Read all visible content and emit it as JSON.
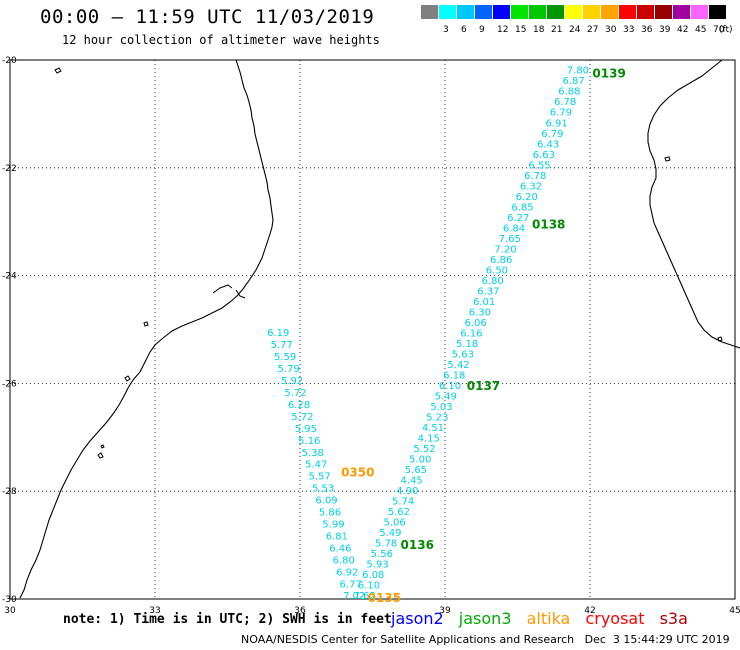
{
  "header": {
    "title": "00:00 – 11:59 UTC 11/03/2019",
    "subtitle": "12 hour collection of altimeter wave heights"
  },
  "legend": {
    "unit": "(ft)",
    "swatches": [
      {
        "label": "",
        "color": "#808080"
      },
      {
        "label": "3",
        "color": "#00ffff"
      },
      {
        "label": "6",
        "color": "#00c8ff"
      },
      {
        "label": "9",
        "color": "#0064ff"
      },
      {
        "label": "12",
        "color": "#0000ff"
      },
      {
        "label": "15",
        "color": "#00e600"
      },
      {
        "label": "18",
        "color": "#00c800"
      },
      {
        "label": "21",
        "color": "#009600"
      },
      {
        "label": "24",
        "color": "#ffff00"
      },
      {
        "label": "27",
        "color": "#ffd200"
      },
      {
        "label": "30",
        "color": "#ffa500"
      },
      {
        "label": "33",
        "color": "#ff0000"
      },
      {
        "label": "36",
        "color": "#c80000"
      },
      {
        "label": "39",
        "color": "#960000"
      },
      {
        "label": "42",
        "color": "#a000a0"
      },
      {
        "label": "45",
        "color": "#ff64ff"
      },
      {
        "label": "70",
        "color": "#000000"
      }
    ]
  },
  "map": {
    "lon_min": 30,
    "lon_max": 45,
    "lat_min": -30,
    "lat_max": -20,
    "x_ticks": [
      "30",
      "33",
      "36",
      "39",
      "42",
      "45"
    ],
    "y_ticks": [
      "-20",
      "-22",
      "-24",
      "-26",
      "-28",
      "-30"
    ],
    "grid": "dotted"
  },
  "colors": {
    "swh_values": "#00d0e8",
    "jason3_time": "#008800",
    "altika_time": "#ff9900",
    "jason2": "#0000ff",
    "jason3": "#00aa00",
    "altika": "#ff9900",
    "cryosat": "#ff0000",
    "s3a": "#aa0000",
    "coast": "#000000"
  },
  "tracks": [
    {
      "satellite": "jason3",
      "values": [
        "7.80",
        "6.87",
        "6.88",
        "6.78",
        "6.79",
        "6.91",
        "6.79",
        "6.43",
        "6.63",
        "6.55",
        "6.78",
        "6.32",
        "6.20",
        "6.85",
        "6.27",
        "6.84",
        "7.65",
        "7.20",
        "6.86",
        "6.50",
        "6.80",
        "6.37",
        "6.01",
        "6.30",
        "6.06",
        "6.16",
        "5.18",
        "5.63",
        "5.42",
        "6.18",
        "6.10",
        "5.49",
        "5.03",
        "5.23",
        "4.51",
        "4.15",
        "5.52",
        "5.00",
        "5.65",
        "4.45",
        "4.90",
        "5.74",
        "5.62",
        "5.06",
        "5.49",
        "5.78",
        "5.56",
        "5.93",
        "6.08",
        "6.10",
        "7.62"
      ],
      "times": [
        {
          "label": "0139",
          "lon": 42.05,
          "lat": -20.25
        },
        {
          "label": "0138",
          "lon": 40.8,
          "lat": -23.05
        },
        {
          "label": "0137",
          "lon": 39.45,
          "lat": -26.05
        },
        {
          "label": "0136",
          "lon": 38.08,
          "lat": -29.0
        }
      ]
    },
    {
      "satellite": "altika",
      "values": [
        "6.19",
        "5.77",
        "5.59",
        "5.79",
        "5.92",
        "5.72",
        "6.28",
        "5.72",
        "5.95",
        "5.16",
        "5.38",
        "5.47",
        "5.57",
        "5.53",
        "6.09",
        "5.86",
        "5.99",
        "6.81",
        "6.46",
        "6.80",
        "6.92",
        "6.77",
        "7.02"
      ],
      "times": [
        {
          "label": "0350",
          "lon": 36.85,
          "lat": -27.65
        },
        {
          "label": "0135",
          "lon": 37.4,
          "lat": -29.98
        }
      ]
    }
  ],
  "footer": {
    "note": "note: 1) Time is in UTC; 2) SWH is in feet",
    "missions": [
      "jason2",
      "jason3",
      "altika",
      "cryosat",
      "s3a"
    ],
    "credit": "NOAA/NESDIS Center for Satellite Applications and Research   Dec  3 15:44:29 UTC 2019"
  }
}
